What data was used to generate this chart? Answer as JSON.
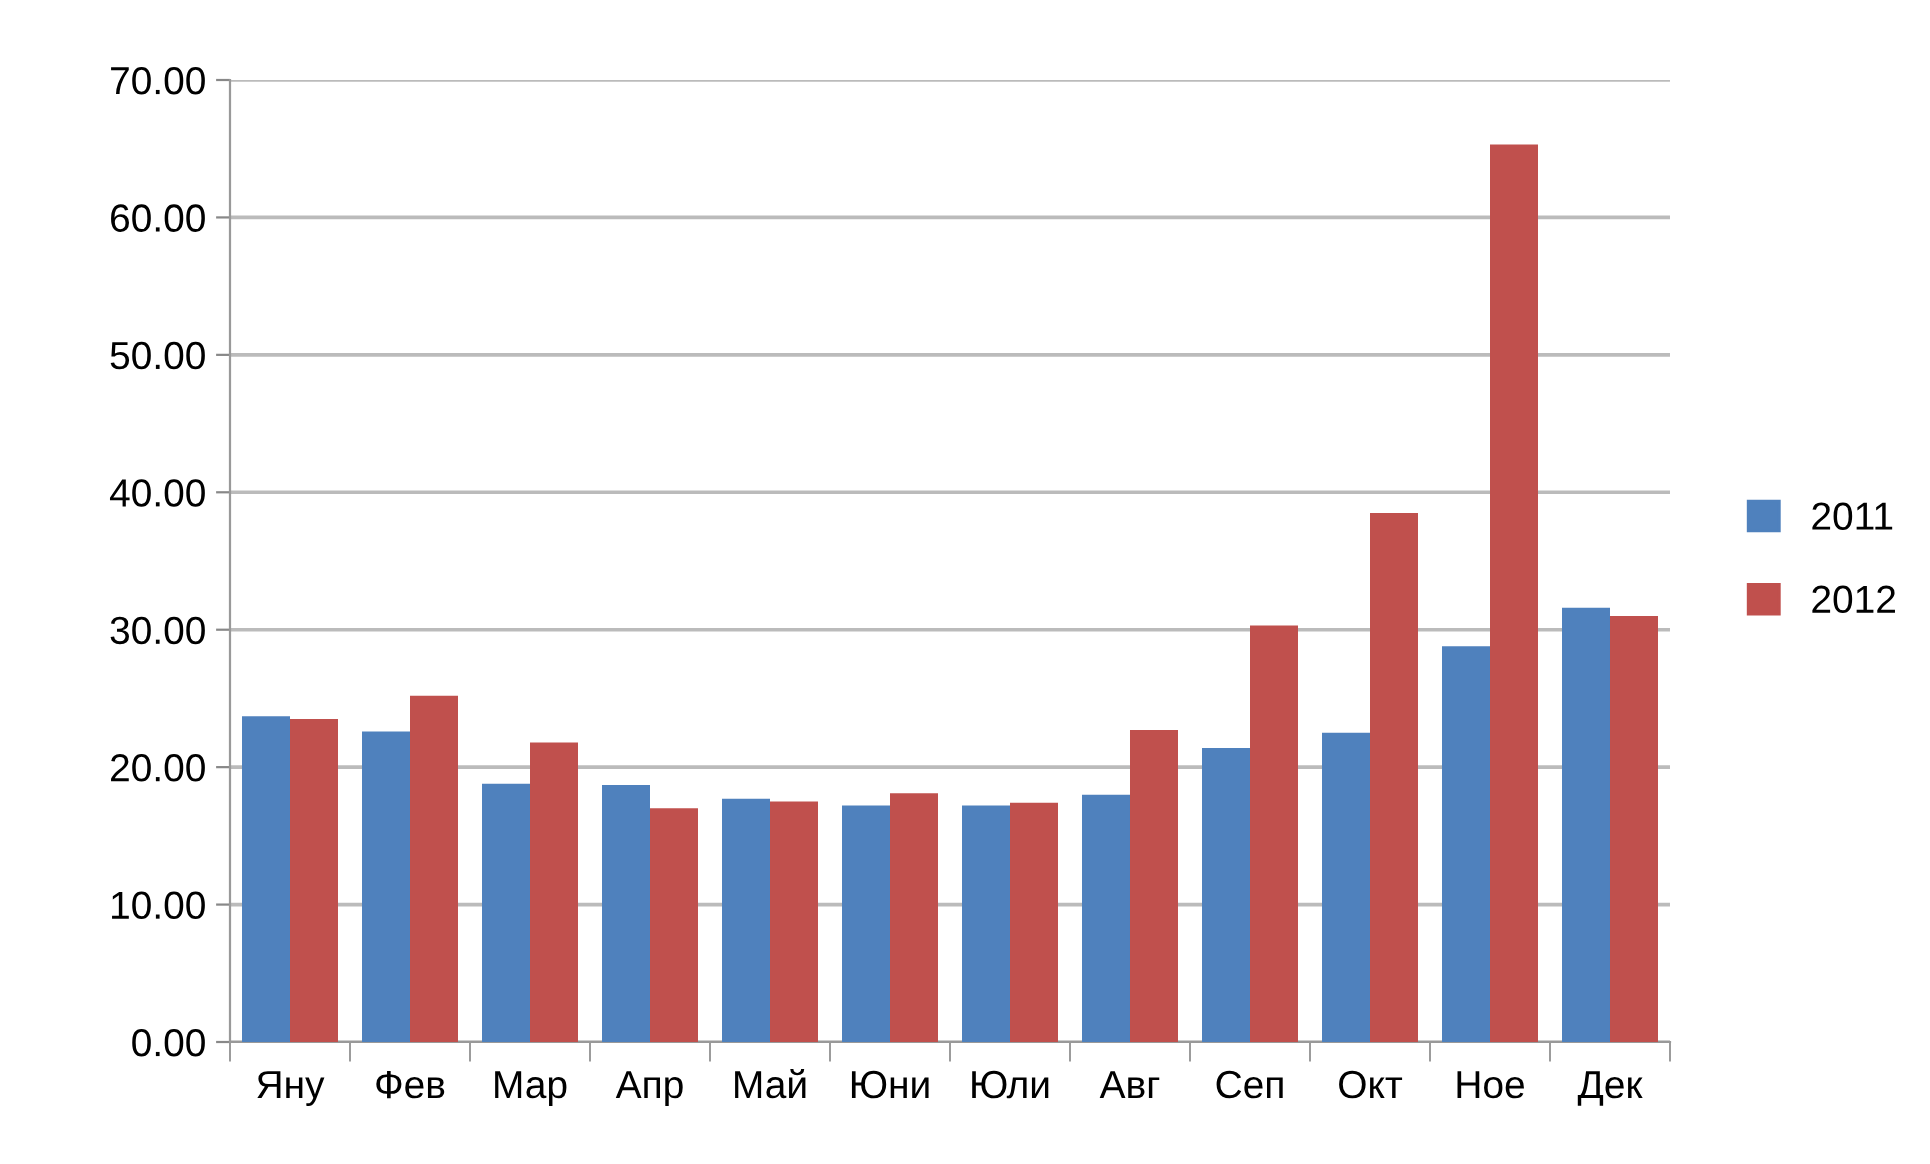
{
  "chart_data": {
    "type": "bar",
    "categories": [
      "Яну",
      "Фев",
      "Мар",
      "Апр",
      "Май",
      "Юни",
      "Юли",
      "Авг",
      "Сеп",
      "Окт",
      "Ное",
      "Дек"
    ],
    "series": [
      {
        "name": "2011",
        "color": "#4f81bd",
        "values": [
          23.7,
          22.6,
          18.8,
          18.7,
          17.7,
          17.2,
          17.2,
          18.0,
          21.4,
          22.5,
          28.8,
          31.6
        ]
      },
      {
        "name": "2012",
        "color": "#c0504d",
        "values": [
          23.5,
          25.2,
          21.8,
          17.0,
          17.5,
          18.1,
          17.4,
          22.7,
          30.3,
          38.5,
          65.3,
          31.0
        ]
      }
    ],
    "ylim": [
      0,
      70
    ],
    "yticks": [
      {
        "value": 0,
        "label": "0.00"
      },
      {
        "value": 10,
        "label": "10.00"
      },
      {
        "value": 20,
        "label": "20.00"
      },
      {
        "value": 30,
        "label": "30.00"
      },
      {
        "value": 40,
        "label": "40.00"
      },
      {
        "value": 50,
        "label": "50.00"
      },
      {
        "value": 60,
        "label": "60.00"
      },
      {
        "value": 70,
        "label": "70.00"
      }
    ],
    "grid": "y",
    "legend": "right"
  }
}
